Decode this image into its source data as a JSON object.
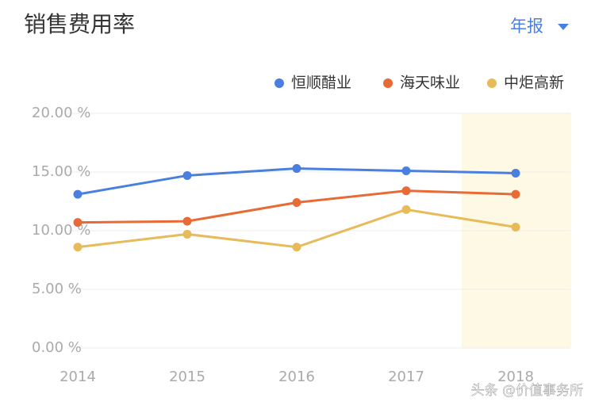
{
  "chart_data": {
    "type": "line",
    "title": "销售费用率",
    "categories": [
      "2014",
      "2015",
      "2016",
      "2017",
      "2018"
    ],
    "series": [
      {
        "name": "恒顺醋业",
        "color": "#4a7fe0",
        "values": [
          13.1,
          14.7,
          15.3,
          15.1,
          14.9
        ]
      },
      {
        "name": "海天味业",
        "color": "#e86a36",
        "values": [
          10.7,
          10.8,
          12.4,
          13.4,
          13.1
        ]
      },
      {
        "name": "中炬高新",
        "color": "#e8bb5a",
        "values": [
          8.6,
          9.7,
          8.6,
          11.8,
          10.3
        ]
      }
    ],
    "ylim": [
      0,
      20
    ],
    "yticks": [
      {
        "value": 0,
        "label": "0.00 %"
      },
      {
        "value": 5,
        "label": "5.00 %"
      },
      {
        "value": 10,
        "label": "10.00 %"
      },
      {
        "value": 15,
        "label": "15.00 %"
      },
      {
        "value": 20,
        "label": "20.00 %"
      }
    ],
    "grid": true
  },
  "report_selector": "年报",
  "watermark": "头条 @价值事务所"
}
